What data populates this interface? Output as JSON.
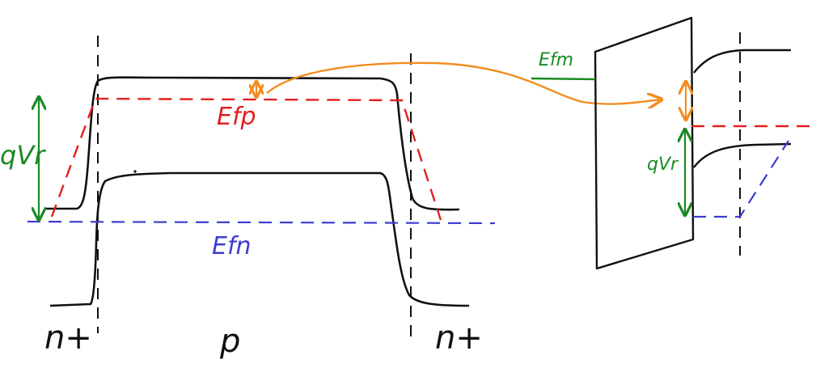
{
  "colors": {
    "ink": "#111111",
    "red": "#e0201e",
    "blue": "#3c3cd0",
    "green": "#1a8a22",
    "orange": "#f28c1e"
  },
  "labels": {
    "efp": "Efp",
    "efn": "Efn",
    "efm": "Efm",
    "qvr_left": "qVr",
    "qvr_right": "qVr",
    "region_n_left": "n+",
    "region_p": "p",
    "region_n_right": "n+"
  }
}
